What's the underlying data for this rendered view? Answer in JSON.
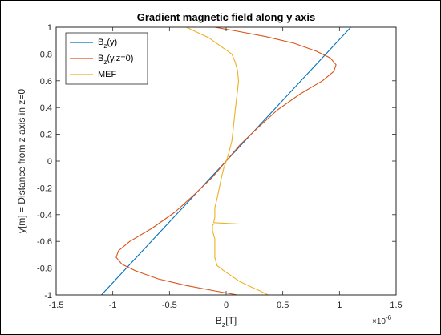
{
  "chart_data": {
    "type": "line",
    "title": "Gradient magnetic field along y axis",
    "xlabel": "B₂[T]",
    "xlabel_base": "B",
    "xlabel_sub": "z",
    "xlabel_rest": "[T]",
    "ylabel": "y[m] = Distance from z axis in z=0",
    "x_exponent_label": "×10",
    "x_exponent": "-6",
    "xlim": [
      -1.5,
      1.5
    ],
    "ylim": [
      -1,
      1
    ],
    "xticks": [
      -1.5,
      -1,
      -0.5,
      0,
      0.5,
      1,
      1.5
    ],
    "xtick_labels": [
      "-1.5",
      "-1",
      "-0.5",
      "0",
      "0.5",
      "1",
      "1.5"
    ],
    "yticks": [
      -1,
      -0.8,
      -0.6,
      -0.4,
      -0.2,
      0,
      0.2,
      0.4,
      0.6,
      0.8,
      1
    ],
    "ytick_labels": [
      "-1",
      "-0.8",
      "-0.6",
      "-0.4",
      "-0.2",
      "0",
      "0.2",
      "0.4",
      "0.6",
      "0.8",
      "1"
    ],
    "grid": false,
    "legend_position": "top-left",
    "series": [
      {
        "name": "B_z(y)",
        "name_base": "B",
        "name_sub": "z",
        "name_rest": "(y)",
        "color": "#0072BD",
        "x": [
          -1.1,
          1.1
        ],
        "y": [
          -1,
          1
        ]
      },
      {
        "name": "B_z(y,z=0)",
        "name_base": "B",
        "name_sub": "z",
        "name_rest": "(y,z=0)",
        "color": "#D95319",
        "x": [
          0.1,
          -0.1,
          -0.35,
          -0.6,
          -0.8,
          -0.92,
          -0.97,
          -0.95,
          -0.85,
          -0.65,
          -0.45,
          -0.28,
          -0.12,
          0,
          0.12,
          0.28,
          0.45,
          0.65,
          0.85,
          0.95,
          0.97,
          0.92,
          0.8,
          0.6,
          0.35,
          0.1,
          -0.1
        ],
        "y": [
          -1,
          -0.97,
          -0.93,
          -0.88,
          -0.82,
          -0.77,
          -0.72,
          -0.67,
          -0.6,
          -0.5,
          -0.38,
          -0.25,
          -0.12,
          0,
          0.12,
          0.25,
          0.38,
          0.5,
          0.6,
          0.67,
          0.72,
          0.77,
          0.82,
          0.88,
          0.93,
          0.97,
          1
        ]
      },
      {
        "name": "MEF",
        "name_base": "MEF",
        "name_sub": "",
        "name_rest": "",
        "color": "#EDB120",
        "x": [
          0.37,
          0.3,
          0.22,
          0.12,
          0.05,
          -0.02,
          -0.08,
          -0.1,
          -0.1,
          -0.1,
          -0.12,
          -0.12,
          -0.11,
          0.12,
          -0.11,
          -0.1,
          -0.1,
          -0.08,
          -0.06,
          -0.04,
          -0.02,
          0.01,
          0.03,
          0.05,
          0.06,
          0.07,
          0.08,
          0.09,
          0.1,
          0.11,
          0.1,
          0.08,
          0.05,
          -0.05,
          -0.15,
          -0.25,
          -0.35
        ],
        "y": [
          -1,
          -0.97,
          -0.94,
          -0.9,
          -0.86,
          -0.82,
          -0.78,
          -0.72,
          -0.65,
          -0.58,
          -0.52,
          -0.48,
          -0.47,
          -0.47,
          -0.46,
          -0.42,
          -0.35,
          -0.28,
          -0.2,
          -0.12,
          -0.05,
          0.02,
          0.08,
          0.15,
          0.22,
          0.3,
          0.38,
          0.45,
          0.52,
          0.6,
          0.68,
          0.74,
          0.8,
          0.86,
          0.92,
          0.96,
          1
        ]
      }
    ]
  }
}
